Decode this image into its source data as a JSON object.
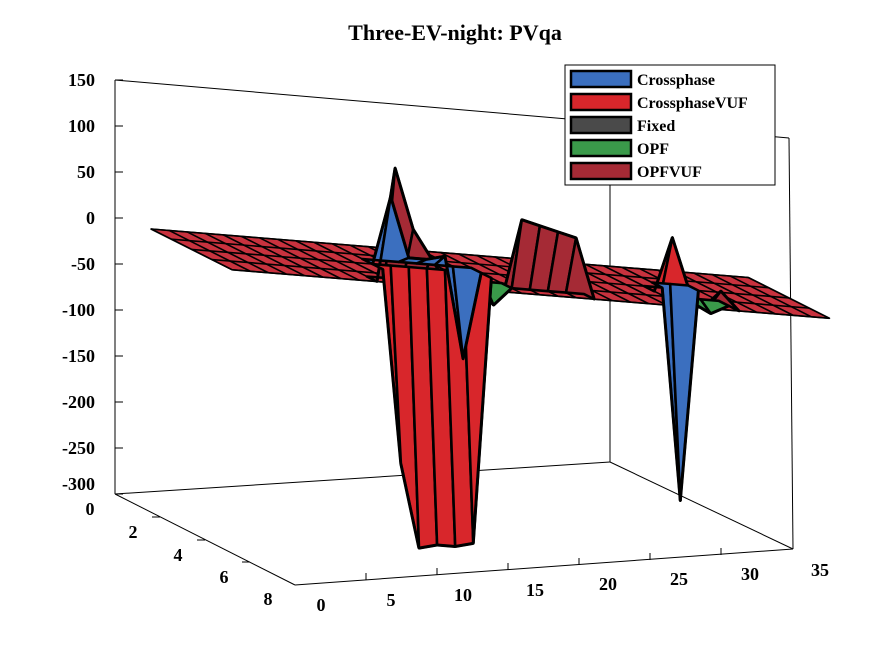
{
  "chart_data": {
    "type": "surface",
    "title": "Three-EV-night: PVqa",
    "xlabel": "",
    "ylabel": "",
    "zlabel": "",
    "x_ticks": [
      "0",
      "5",
      "10",
      "15",
      "20",
      "25",
      "30",
      "35"
    ],
    "y_ticks": [
      "0",
      "2",
      "4",
      "6",
      "8"
    ],
    "z_ticks": [
      "150",
      "100",
      "50",
      "0",
      "-50",
      "-100",
      "-150",
      "-200",
      "-250",
      "-300"
    ],
    "xlim": [
      0,
      35
    ],
    "ylim": [
      0,
      8
    ],
    "zlim": [
      -300,
      150
    ],
    "grid": false,
    "legend_position": "top-right",
    "series": [
      {
        "name": "Crossphase",
        "color": "#3B6FBF",
        "y": 2,
        "x": [
          0,
          1,
          2,
          3,
          4,
          5,
          6,
          7,
          8,
          9,
          10,
          11,
          12,
          13,
          14,
          15,
          16,
          17,
          18,
          19,
          20,
          21,
          22,
          23,
          24,
          25,
          26,
          27,
          28,
          29,
          30,
          31,
          32,
          33
        ],
        "z": [
          0,
          0,
          0,
          0,
          0,
          0,
          0,
          0,
          0,
          0,
          0,
          75,
          10,
          10,
          15,
          -95,
          0,
          0,
          0,
          0,
          0,
          0,
          0,
          0,
          0,
          0,
          0,
          -230,
          0,
          0,
          0,
          0,
          0,
          0
        ]
      },
      {
        "name": "CrossphaseVUF",
        "color": "#D8262B",
        "y": 2.5,
        "x": [
          0,
          1,
          2,
          3,
          4,
          5,
          6,
          7,
          8,
          9,
          10,
          11,
          12,
          13,
          14,
          15,
          16,
          17,
          18,
          19,
          20,
          21,
          22,
          23,
          24,
          25,
          26,
          27,
          28,
          29,
          30,
          31,
          32,
          33
        ],
        "z": [
          0,
          0,
          0,
          0,
          0,
          0,
          0,
          0,
          0,
          0,
          0,
          -210,
          -300,
          -295,
          -295,
          -290,
          0,
          0,
          0,
          0,
          0,
          0,
          0,
          0,
          0,
          0,
          60,
          0,
          0,
          0,
          0,
          0,
          0,
          0
        ]
      },
      {
        "name": "Fixed",
        "color": "#4A4A4A",
        "y": 3,
        "x": [
          0,
          1,
          2,
          3,
          4,
          5,
          6,
          7,
          8,
          9,
          10,
          11,
          12,
          13,
          14,
          15,
          16,
          17,
          18,
          19,
          20,
          21,
          22,
          23,
          24,
          25,
          26,
          27,
          28,
          29,
          30,
          31,
          32,
          33
        ],
        "z": [
          0,
          0,
          0,
          0,
          0,
          0,
          0,
          0,
          0,
          0,
          0,
          0,
          0,
          0,
          0,
          0,
          0,
          0,
          0,
          0,
          0,
          0,
          0,
          0,
          0,
          0,
          0,
          0,
          0,
          0,
          0,
          0,
          0,
          0
        ]
      },
      {
        "name": "OPF",
        "color": "#3A9A4A",
        "y": 3.5,
        "x": [
          0,
          1,
          2,
          3,
          4,
          5,
          6,
          7,
          8,
          9,
          10,
          11,
          12,
          13,
          14,
          15,
          16,
          17,
          18,
          19,
          20,
          21,
          22,
          23,
          24,
          25,
          26,
          27,
          28,
          29,
          30,
          31,
          32,
          33
        ],
        "z": [
          0,
          0,
          0,
          0,
          0,
          0,
          0,
          0,
          0,
          0,
          0,
          0,
          0,
          0,
          0,
          -20,
          0,
          0,
          0,
          0,
          0,
          0,
          0,
          0,
          0,
          0,
          0,
          -10,
          0,
          0,
          0,
          0,
          0,
          0
        ]
      },
      {
        "name": "OPFVUF",
        "color": "#A52A35",
        "y": 4,
        "x": [
          0,
          1,
          2,
          3,
          4,
          5,
          6,
          7,
          8,
          9,
          10,
          11,
          12,
          13,
          14,
          15,
          16,
          17,
          18,
          19,
          20,
          21,
          22,
          23,
          24,
          25,
          26,
          27,
          28,
          29,
          30,
          31,
          32,
          33
        ],
        "z": [
          0,
          0,
          0,
          0,
          0,
          0,
          0,
          0,
          0,
          125,
          60,
          30,
          0,
          0,
          0,
          0,
          80,
          75,
          70,
          65,
          0,
          0,
          0,
          0,
          0,
          0,
          0,
          20,
          0,
          0,
          0,
          0,
          0,
          0
        ]
      }
    ]
  }
}
